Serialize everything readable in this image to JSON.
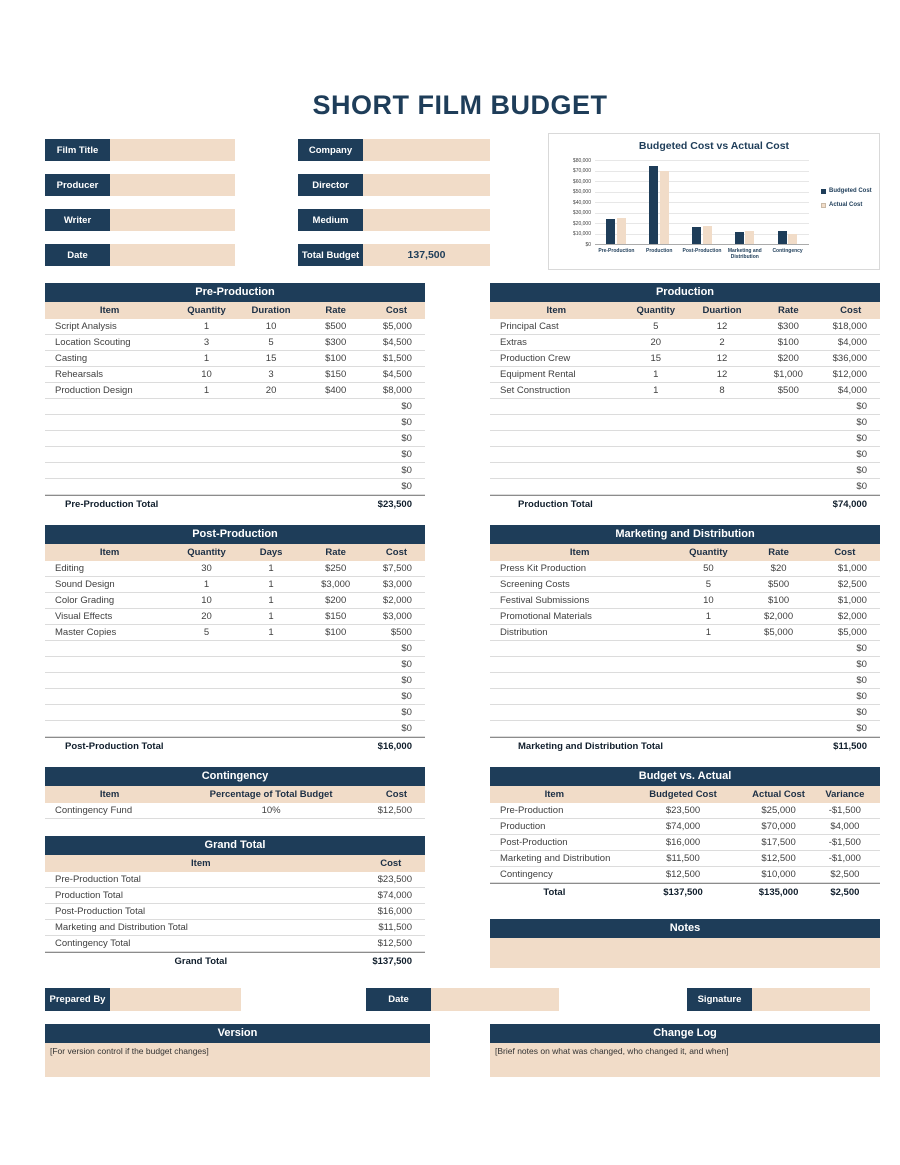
{
  "page": {
    "title": "SHORT FILM BUDGET"
  },
  "colors": {
    "navy": "#1E3D59",
    "beige": "#F1DCC8"
  },
  "form": {
    "left": [
      {
        "label": "Film Title",
        "value": ""
      },
      {
        "label": "Producer",
        "value": ""
      },
      {
        "label": "Writer",
        "value": ""
      },
      {
        "label": "Date",
        "value": ""
      }
    ],
    "right": [
      {
        "label": "Company",
        "value": ""
      },
      {
        "label": "Director",
        "value": ""
      },
      {
        "label": "Medium",
        "value": ""
      },
      {
        "label": "Total Budget",
        "value": "137,500"
      }
    ]
  },
  "chart_data": {
    "type": "bar",
    "title": "Budgeted Cost vs Actual Cost",
    "categories": [
      "Pre-Production",
      "Production",
      "Post-Production",
      "Marketing and Distribution",
      "Contingency"
    ],
    "series": [
      {
        "name": "Budgeted Cost",
        "color": "#1E3D59",
        "values": [
          23500,
          74000,
          16000,
          11500,
          12500
        ]
      },
      {
        "name": "Actual Cost",
        "color": "#F1DCC8",
        "values": [
          25000,
          70000,
          17500,
          12500,
          10000
        ]
      }
    ],
    "ylim": [
      0,
      80000
    ],
    "ytick_step": 10000,
    "ytick_labels": [
      "$80,000",
      "$70,000",
      "$60,000",
      "$50,000",
      "$40,000",
      "$30,000",
      "$20,000",
      "$10,000",
      "$0"
    ],
    "legend_position": "right",
    "grid": true
  },
  "tables": {
    "pre_production": {
      "title": "Pre-Production",
      "headers": [
        "Item",
        "Quantity",
        "Duration",
        "Rate",
        "Cost"
      ],
      "rows": [
        [
          "Script Analysis",
          "1",
          "10",
          "$500",
          "$5,000"
        ],
        [
          "Location Scouting",
          "3",
          "5",
          "$300",
          "$4,500"
        ],
        [
          "Casting",
          "1",
          "15",
          "$100",
          "$1,500"
        ],
        [
          "Rehearsals",
          "10",
          "3",
          "$150",
          "$4,500"
        ],
        [
          "Production Design",
          "1",
          "20",
          "$400",
          "$8,000"
        ],
        [
          "",
          "",
          "",
          "",
          "$0"
        ],
        [
          "",
          "",
          "",
          "",
          "$0"
        ],
        [
          "",
          "",
          "",
          "",
          "$0"
        ],
        [
          "",
          "",
          "",
          "",
          "$0"
        ],
        [
          "",
          "",
          "",
          "",
          "$0"
        ],
        [
          "",
          "",
          "",
          "",
          "$0"
        ]
      ],
      "total_row": [
        "Pre-Production Total",
        "$23,500"
      ]
    },
    "production": {
      "title": "Production",
      "headers": [
        "Item",
        "Quantity",
        "Duartion",
        "Rate",
        "Cost"
      ],
      "rows": [
        [
          "Principal Cast",
          "5",
          "12",
          "$300",
          "$18,000"
        ],
        [
          "Extras",
          "20",
          "2",
          "$100",
          "$4,000"
        ],
        [
          "Production Crew",
          "15",
          "12",
          "$200",
          "$36,000"
        ],
        [
          "Equipment Rental",
          "1",
          "12",
          "$1,000",
          "$12,000"
        ],
        [
          "Set Construction",
          "1",
          "8",
          "$500",
          "$4,000"
        ],
        [
          "",
          "",
          "",
          "",
          "$0"
        ],
        [
          "",
          "",
          "",
          "",
          "$0"
        ],
        [
          "",
          "",
          "",
          "",
          "$0"
        ],
        [
          "",
          "",
          "",
          "",
          "$0"
        ],
        [
          "",
          "",
          "",
          "",
          "$0"
        ],
        [
          "",
          "",
          "",
          "",
          "$0"
        ]
      ],
      "total_row": [
        "Production Total",
        "$74,000"
      ]
    },
    "post_production": {
      "title": "Post-Production",
      "headers": [
        "Item",
        "Quantity",
        "Days",
        "Rate",
        "Cost"
      ],
      "rows": [
        [
          "Editing",
          "30",
          "1",
          "$250",
          "$7,500"
        ],
        [
          "Sound Design",
          "1",
          "1",
          "$3,000",
          "$3,000"
        ],
        [
          "Color Grading",
          "10",
          "1",
          "$200",
          "$2,000"
        ],
        [
          "Visual Effects",
          "20",
          "1",
          "$150",
          "$3,000"
        ],
        [
          "Master Copies",
          "5",
          "1",
          "$100",
          "$500"
        ],
        [
          "",
          "",
          "",
          "",
          "$0"
        ],
        [
          "",
          "",
          "",
          "",
          "$0"
        ],
        [
          "",
          "",
          "",
          "",
          "$0"
        ],
        [
          "",
          "",
          "",
          "",
          "$0"
        ],
        [
          "",
          "",
          "",
          "",
          "$0"
        ],
        [
          "",
          "",
          "",
          "",
          "$0"
        ]
      ],
      "total_row": [
        "Post-Production Total",
        "$16,000"
      ]
    },
    "marketing": {
      "title": "Marketing and Distribution",
      "headers": [
        "Item",
        "Quantity",
        "Rate",
        "Cost"
      ],
      "rows": [
        [
          "Press Kit Production",
          "50",
          "$20",
          "$1,000"
        ],
        [
          "Screening Costs",
          "5",
          "$500",
          "$2,500"
        ],
        [
          "Festival Submissions",
          "10",
          "$100",
          "$1,000"
        ],
        [
          "Promotional Materials",
          "1",
          "$2,000",
          "$2,000"
        ],
        [
          "Distribution",
          "1",
          "$5,000",
          "$5,000"
        ],
        [
          "",
          "",
          "",
          "$0"
        ],
        [
          "",
          "",
          "",
          "$0"
        ],
        [
          "",
          "",
          "",
          "$0"
        ],
        [
          "",
          "",
          "",
          "$0"
        ],
        [
          "",
          "",
          "",
          "$0"
        ],
        [
          "",
          "",
          "",
          "$0"
        ]
      ],
      "total_row": [
        "Marketing and Distribution Total",
        "$11,500"
      ]
    },
    "contingency": {
      "title": "Contingency",
      "headers": [
        "Item",
        "Percentage of Total Budget",
        "Cost"
      ],
      "rows": [
        [
          "Contingency Fund",
          "10%",
          "$12,500"
        ]
      ],
      "total_row": null
    },
    "grand_total": {
      "title": "Grand Total",
      "headers": [
        "Item",
        "Cost"
      ],
      "rows": [
        [
          "Pre-Production Total",
          "$23,500"
        ],
        [
          "Production Total",
          "$74,000"
        ],
        [
          "Post-Production Total",
          "$16,000"
        ],
        [
          "Marketing and Distribution Total",
          "$11,500"
        ],
        [
          "Contingency Total",
          "$12,500"
        ]
      ],
      "total_row": [
        "Grand Total",
        "$137,500"
      ]
    },
    "budget_vs_actual": {
      "title": "Budget vs. Actual",
      "headers": [
        "Item",
        "Budgeted Cost",
        "Actual Cost",
        "Variance"
      ],
      "rows": [
        [
          "Pre-Production",
          "$23,500",
          "$25,000",
          "-$1,500"
        ],
        [
          "Production",
          "$74,000",
          "$70,000",
          "$4,000"
        ],
        [
          "Post-Production",
          "$16,000",
          "$17,500",
          "-$1,500"
        ],
        [
          "Marketing and Distribution",
          "$11,500",
          "$12,500",
          "-$1,000"
        ],
        [
          "Contingency",
          "$12,500",
          "$10,000",
          "$2,500"
        ]
      ],
      "total_row": [
        "Total",
        "$137,500",
        "$135,000",
        "$2,500"
      ]
    }
  },
  "notes": {
    "title": "Notes",
    "body": ""
  },
  "footer": {
    "prepared_by": {
      "label": "Prepared By",
      "value": ""
    },
    "date": {
      "label": "Date",
      "value": ""
    },
    "signature": {
      "label": "Signature",
      "value": ""
    }
  },
  "version": {
    "title": "Version",
    "body": "[For version control if the budget changes]"
  },
  "change_log": {
    "title": "Change Log",
    "body": "[Brief notes on what was changed, who changed it, and when]"
  }
}
